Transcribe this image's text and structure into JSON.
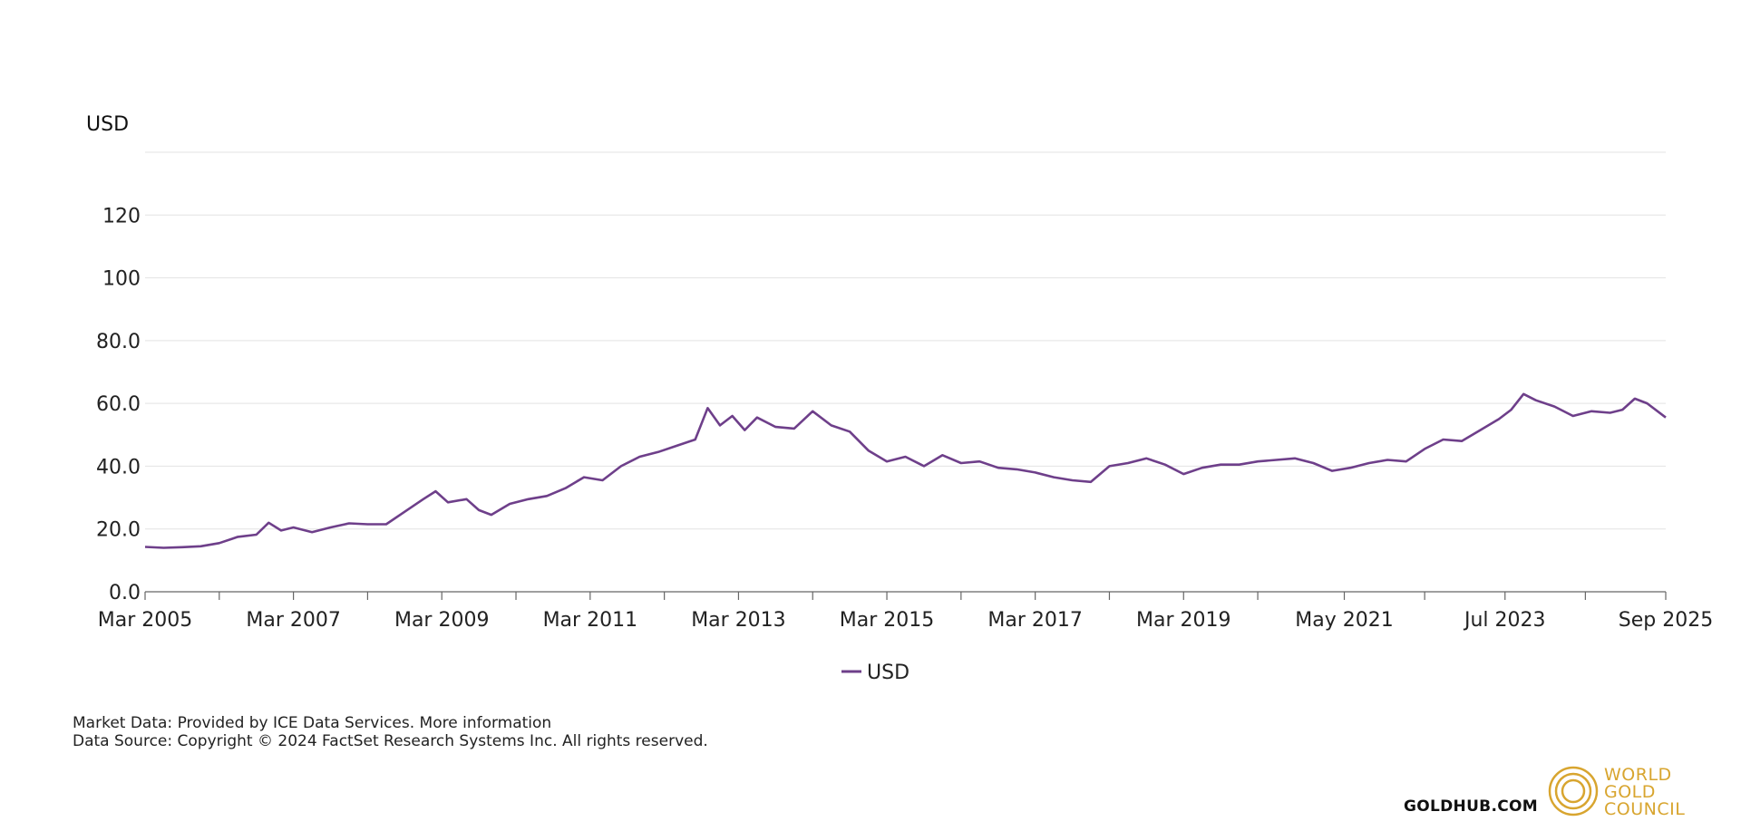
{
  "brand": {
    "site": "GOLDHUB.COM",
    "logo_lines": [
      "WORLD",
      "GOLD",
      "COUNCIL"
    ],
    "logo_color": "#d8a52f"
  },
  "footer": {
    "market_data_prefix": "Market Data: Provided by ICE Data Services.",
    "market_data_link": "More information",
    "data_source": "Data Source: Copyright © 2024 FactSet Research Systems Inc. All rights reserved."
  },
  "chart_data": {
    "type": "line",
    "title": "",
    "xlabel": "",
    "ylabel": "USD",
    "ylim": [
      0,
      140
    ],
    "yticks": [
      0,
      20,
      40,
      60,
      80,
      100,
      120
    ],
    "ytick_labels": [
      "0.0",
      "20.0",
      "40.0",
      "60.0",
      "80.0",
      "100",
      "120"
    ],
    "grid": true,
    "legend_position": "bottom-center",
    "line_color": "#6e3f8a",
    "x_range": [
      "2005-03",
      "2025-09"
    ],
    "xtick_labels": [
      {
        "date": "2005-03",
        "label": "Mar 2005"
      },
      {
        "date": "2007-03",
        "label": "Mar 2007"
      },
      {
        "date": "2009-03",
        "label": "Mar 2009"
      },
      {
        "date": "2011-03",
        "label": "Mar 2011"
      },
      {
        "date": "2013-03",
        "label": "Mar 2013"
      },
      {
        "date": "2015-03",
        "label": "Mar 2015"
      },
      {
        "date": "2017-03",
        "label": "Mar 2017"
      },
      {
        "date": "2019-03",
        "label": "Mar 2019"
      },
      {
        "date": "2021-05",
        "label": "May 2021"
      },
      {
        "date": "2023-07",
        "label": "Jul 2023"
      },
      {
        "date": "2025-09",
        "label": "Sep 2025"
      }
    ],
    "minor_ticks": [
      "2006-03",
      "2008-03",
      "2010-03",
      "2012-03",
      "2014-03",
      "2016-03",
      "2018-03",
      "2020-03",
      "2022-06",
      "2024-08"
    ],
    "series": [
      {
        "name": "USD",
        "points": [
          [
            "2005-03",
            14.3
          ],
          [
            "2005-06",
            14.0
          ],
          [
            "2005-09",
            14.2
          ],
          [
            "2005-12",
            14.5
          ],
          [
            "2006-03",
            15.5
          ],
          [
            "2006-06",
            17.5
          ],
          [
            "2006-09",
            18.2
          ],
          [
            "2006-11",
            22.0
          ],
          [
            "2007-01",
            19.5
          ],
          [
            "2007-03",
            20.5
          ],
          [
            "2007-06",
            19.0
          ],
          [
            "2007-09",
            20.5
          ],
          [
            "2007-12",
            21.8
          ],
          [
            "2008-03",
            21.5
          ],
          [
            "2008-06",
            21.5
          ],
          [
            "2008-09",
            25.5
          ],
          [
            "2008-12",
            29.5
          ],
          [
            "2009-02",
            32.0
          ],
          [
            "2009-04",
            28.5
          ],
          [
            "2009-07",
            29.5
          ],
          [
            "2009-09",
            26.0
          ],
          [
            "2009-11",
            24.5
          ],
          [
            "2010-02",
            28.0
          ],
          [
            "2010-05",
            29.5
          ],
          [
            "2010-08",
            30.5
          ],
          [
            "2010-11",
            33.0
          ],
          [
            "2011-02",
            36.5
          ],
          [
            "2011-05",
            35.5
          ],
          [
            "2011-08",
            40.0
          ],
          [
            "2011-11",
            43.0
          ],
          [
            "2012-02",
            44.5
          ],
          [
            "2012-05",
            46.5
          ],
          [
            "2012-08",
            48.5
          ],
          [
            "2012-10",
            58.5
          ],
          [
            "2012-12",
            53.0
          ],
          [
            "2013-02",
            56.0
          ],
          [
            "2013-04",
            51.5
          ],
          [
            "2013-06",
            55.5
          ],
          [
            "2013-09",
            52.5
          ],
          [
            "2013-12",
            52.0
          ],
          [
            "2014-03",
            57.5
          ],
          [
            "2014-06",
            53.0
          ],
          [
            "2014-09",
            51.0
          ],
          [
            "2014-12",
            45.0
          ],
          [
            "2015-03",
            41.5
          ],
          [
            "2015-06",
            43.0
          ],
          [
            "2015-09",
            40.0
          ],
          [
            "2015-12",
            43.5
          ],
          [
            "2016-03",
            41.0
          ],
          [
            "2016-06",
            41.5
          ],
          [
            "2016-09",
            39.5
          ],
          [
            "2016-12",
            39.0
          ],
          [
            "2017-03",
            38.0
          ],
          [
            "2017-06",
            36.5
          ],
          [
            "2017-09",
            35.5
          ],
          [
            "2017-12",
            35.0
          ],
          [
            "2018-03",
            40.0
          ],
          [
            "2018-06",
            41.0
          ],
          [
            "2018-09",
            42.5
          ],
          [
            "2018-12",
            40.5
          ],
          [
            "2019-03",
            37.5
          ],
          [
            "2019-06",
            39.5
          ],
          [
            "2019-09",
            40.5
          ],
          [
            "2019-12",
            40.5
          ],
          [
            "2020-03",
            41.5
          ],
          [
            "2020-06",
            42.0
          ],
          [
            "2020-09",
            42.5
          ],
          [
            "2020-12",
            41.0
          ],
          [
            "2021-03",
            38.5
          ],
          [
            "2021-06",
            39.5
          ],
          [
            "2021-09",
            41.0
          ],
          [
            "2021-12",
            42.0
          ],
          [
            "2022-03",
            41.5
          ],
          [
            "2022-06",
            45.5
          ],
          [
            "2022-09",
            48.5
          ],
          [
            "2022-12",
            48.0
          ],
          [
            "2023-03",
            51.5
          ],
          [
            "2023-06",
            55.0
          ],
          [
            "2023-08",
            58.0
          ],
          [
            "2023-10",
            63.0
          ],
          [
            "2023-12",
            61.0
          ],
          [
            "2024-03",
            59.0
          ],
          [
            "2024-06",
            56.0
          ],
          [
            "2024-09",
            57.5
          ],
          [
            "2024-12",
            57.0
          ],
          [
            "2025-02",
            58.0
          ],
          [
            "2025-04",
            61.5
          ],
          [
            "2025-06",
            60.0
          ],
          [
            "2025-09",
            55.5
          ]
        ]
      }
    ]
  }
}
